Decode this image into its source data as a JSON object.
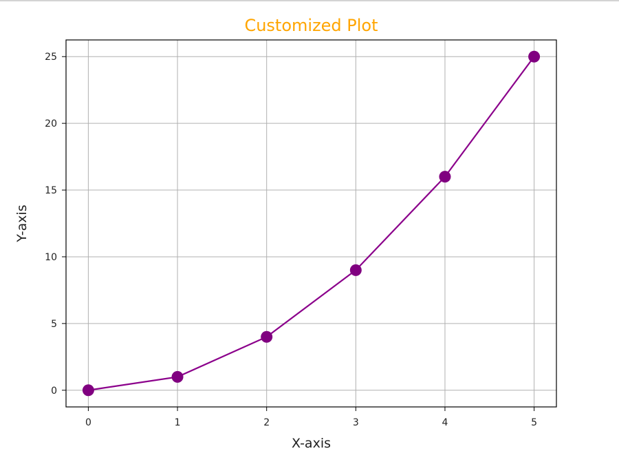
{
  "chart_data": {
    "type": "line",
    "title": "Customized Plot",
    "xlabel": "X-axis",
    "ylabel": "Y-axis",
    "x": [
      0,
      1,
      2,
      3,
      4,
      5
    ],
    "series": [
      {
        "values": [
          0,
          1,
          4,
          9,
          16,
          25
        ],
        "color": "#800080",
        "marker": "circle"
      }
    ],
    "xticks": [
      "0",
      "1",
      "2",
      "3",
      "4",
      "5"
    ],
    "yticks": [
      "0",
      "5",
      "10",
      "15",
      "20",
      "25"
    ],
    "xlim": [
      -0.25,
      5.25
    ],
    "ylim": [
      -1.25,
      26.25
    ],
    "grid": true,
    "colors": {
      "title": "#FFA500",
      "line": "#8B008B",
      "marker": "#800080",
      "grid": "#b0b0b0",
      "axes": "#000000"
    }
  }
}
